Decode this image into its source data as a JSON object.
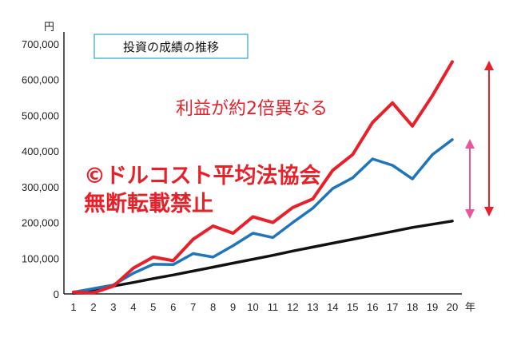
{
  "chart_data": {
    "type": "line",
    "title": "投資の成績の推移",
    "y_unit": "円",
    "x_unit": "年",
    "xlabel": "",
    "ylabel": "",
    "ylim": [
      0,
      750000
    ],
    "yticks": [
      0,
      100000,
      200000,
      300000,
      400000,
      500000,
      600000,
      700000
    ],
    "ytick_labels": [
      "0",
      "100,000",
      "200,000",
      "300,000",
      "400,000",
      "500,000",
      "600,000",
      "700,000"
    ],
    "categories": [
      "1",
      "2",
      "3",
      "4",
      "5",
      "6",
      "7",
      "8",
      "9",
      "10",
      "11",
      "12",
      "13",
      "14",
      "15",
      "16",
      "17",
      "18",
      "19",
      "20"
    ],
    "grid": false,
    "legend": "none",
    "series": [
      {
        "color": "#e8202a",
        "values": [
          5000,
          3000,
          22000,
          72000,
          103000,
          93000,
          153000,
          190000,
          170000,
          216000,
          200000,
          242000,
          266000,
          346000,
          390000,
          480000,
          535000,
          470000,
          555000,
          650000
        ]
      },
      {
        "color": "#1f75bc",
        "values": [
          5000,
          15000,
          25000,
          58000,
          83000,
          82000,
          113000,
          103000,
          135000,
          170000,
          158000,
          200000,
          240000,
          295000,
          325000,
          378000,
          360000,
          322000,
          390000,
          432000
        ]
      },
      {
        "color": "#111111",
        "values": [
          2000,
          12000,
          22000,
          32000,
          43000,
          53000,
          64000,
          75000,
          86000,
          97000,
          108000,
          120000,
          131000,
          142000,
          153000,
          164000,
          175000,
          186000,
          195000,
          204000
        ]
      }
    ],
    "annotations": {
      "gain_text": "利益が約2倍異なる",
      "watermark_line1": "©ドルコスト平均法協会",
      "watermark_line2": "無断転載禁止"
    }
  },
  "colors": {
    "red_arrow": "#e8202a",
    "pink_arrow": "#e8559a",
    "title_box_border": "#2aa3cc"
  }
}
